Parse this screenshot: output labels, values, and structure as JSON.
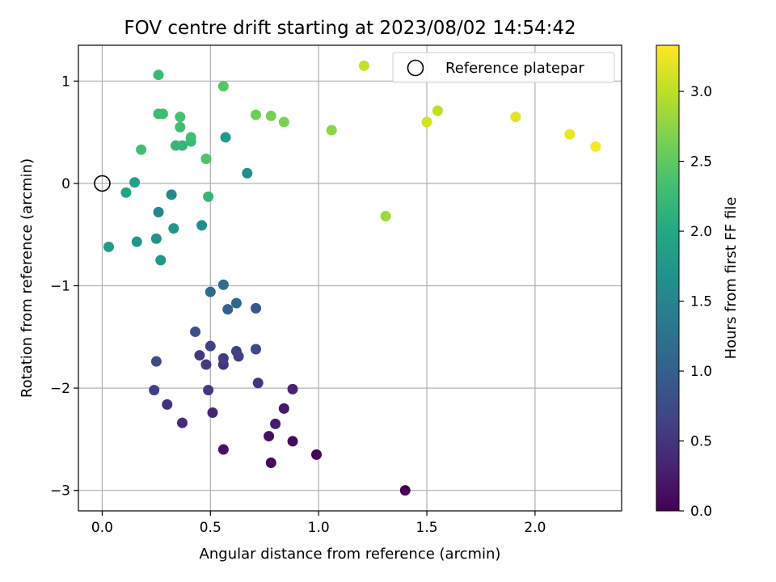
{
  "chart_data": {
    "type": "scatter",
    "title": "FOV centre drift starting at 2023/08/02 14:54:42",
    "xlabel": "Angular distance from reference (arcmin)",
    "ylabel": "Rotation from reference (arcmin)",
    "xlim": [
      -0.11,
      2.4
    ],
    "ylim": [
      -3.2,
      1.35
    ],
    "xticks": [
      0.0,
      0.5,
      1.0,
      1.5,
      2.0
    ],
    "xtick_labels": [
      "0.0",
      "0.5",
      "1.0",
      "1.5",
      "2.0"
    ],
    "yticks": [
      -3,
      -2,
      -1,
      0,
      1
    ],
    "ytick_labels": [
      "−3",
      "−2",
      "−1",
      "0",
      "1"
    ],
    "grid": true,
    "legend": {
      "position": "upper-right",
      "label": "Reference platepar",
      "marker": "open-circle"
    },
    "reference_point": {
      "x": 0.0,
      "y": 0.0
    },
    "colorbar": {
      "label": "Hours from first FF file",
      "colormap": "viridis",
      "range": [
        0.0,
        3.33
      ],
      "ticks": [
        0.0,
        0.5,
        1.0,
        1.5,
        2.0,
        2.5,
        3.0
      ],
      "tick_labels": [
        "0.0",
        "0.5",
        "1.0",
        "1.5",
        "2.0",
        "2.5",
        "3.0"
      ]
    },
    "points": [
      {
        "x": 1.4,
        "y": -3.0,
        "c": 0.0
      },
      {
        "x": 0.99,
        "y": -2.65,
        "c": 0.05
      },
      {
        "x": 0.78,
        "y": -2.73,
        "c": 0.08
      },
      {
        "x": 0.88,
        "y": -2.52,
        "c": 0.1
      },
      {
        "x": 0.77,
        "y": -2.47,
        "c": 0.13
      },
      {
        "x": 0.56,
        "y": -2.6,
        "c": 0.16
      },
      {
        "x": 0.84,
        "y": -2.2,
        "c": 0.2
      },
      {
        "x": 0.8,
        "y": -2.35,
        "c": 0.25
      },
      {
        "x": 0.88,
        "y": -2.01,
        "c": 0.3
      },
      {
        "x": 0.51,
        "y": -2.24,
        "c": 0.35
      },
      {
        "x": 0.37,
        "y": -2.34,
        "c": 0.42
      },
      {
        "x": 0.3,
        "y": -2.16,
        "c": 0.48
      },
      {
        "x": 0.49,
        "y": -2.02,
        "c": 0.55
      },
      {
        "x": 0.24,
        "y": -2.02,
        "c": 0.62
      },
      {
        "x": 0.72,
        "y": -1.95,
        "c": 0.5
      },
      {
        "x": 0.56,
        "y": -1.77,
        "c": 0.5
      },
      {
        "x": 0.48,
        "y": -1.77,
        "c": 0.55
      },
      {
        "x": 0.45,
        "y": -1.68,
        "c": 0.55
      },
      {
        "x": 0.56,
        "y": -1.71,
        "c": 0.6
      },
      {
        "x": 0.63,
        "y": -1.69,
        "c": 0.6
      },
      {
        "x": 0.62,
        "y": -1.64,
        "c": 0.65
      },
      {
        "x": 0.71,
        "y": -1.62,
        "c": 0.7
      },
      {
        "x": 0.5,
        "y": -1.59,
        "c": 0.65
      },
      {
        "x": 0.25,
        "y": -1.74,
        "c": 0.75
      },
      {
        "x": 0.43,
        "y": -1.45,
        "c": 0.8
      },
      {
        "x": 0.71,
        "y": -1.22,
        "c": 0.9
      },
      {
        "x": 0.58,
        "y": -1.23,
        "c": 1.0
      },
      {
        "x": 0.62,
        "y": -1.17,
        "c": 1.1
      },
      {
        "x": 0.5,
        "y": -1.06,
        "c": 1.15
      },
      {
        "x": 0.56,
        "y": -0.99,
        "c": 1.2
      },
      {
        "x": 0.27,
        "y": -0.75,
        "c": 1.8
      },
      {
        "x": 0.03,
        "y": -0.62,
        "c": 1.85
      },
      {
        "x": 0.16,
        "y": -0.57,
        "c": 1.75
      },
      {
        "x": 0.25,
        "y": -0.54,
        "c": 1.7
      },
      {
        "x": 0.33,
        "y": -0.44,
        "c": 1.75
      },
      {
        "x": 0.46,
        "y": -0.41,
        "c": 1.65
      },
      {
        "x": 0.26,
        "y": -0.28,
        "c": 1.5
      },
      {
        "x": 0.32,
        "y": -0.11,
        "c": 1.55
      },
      {
        "x": 0.11,
        "y": -0.09,
        "c": 1.95
      },
      {
        "x": 0.15,
        "y": 0.01,
        "c": 1.9
      },
      {
        "x": 0.49,
        "y": -0.13,
        "c": 2.2
      },
      {
        "x": 0.67,
        "y": 0.1,
        "c": 1.65
      },
      {
        "x": 0.57,
        "y": 0.45,
        "c": 1.8
      },
      {
        "x": 0.48,
        "y": 0.24,
        "c": 2.4
      },
      {
        "x": 0.18,
        "y": 0.33,
        "c": 2.3
      },
      {
        "x": 0.34,
        "y": 0.37,
        "c": 2.2
      },
      {
        "x": 0.37,
        "y": 0.37,
        "c": 2.2
      },
      {
        "x": 0.41,
        "y": 0.41,
        "c": 2.25
      },
      {
        "x": 0.41,
        "y": 0.45,
        "c": 2.3
      },
      {
        "x": 0.36,
        "y": 0.55,
        "c": 2.3
      },
      {
        "x": 0.36,
        "y": 0.65,
        "c": 2.35
      },
      {
        "x": 0.26,
        "y": 0.68,
        "c": 2.25
      },
      {
        "x": 0.28,
        "y": 0.68,
        "c": 2.3
      },
      {
        "x": 0.26,
        "y": 1.06,
        "c": 2.25
      },
      {
        "x": 0.56,
        "y": 0.95,
        "c": 2.45
      },
      {
        "x": 0.71,
        "y": 0.67,
        "c": 2.6
      },
      {
        "x": 0.78,
        "y": 0.66,
        "c": 2.65
      },
      {
        "x": 0.84,
        "y": 0.6,
        "c": 2.65
      },
      {
        "x": 1.06,
        "y": 0.52,
        "c": 2.75
      },
      {
        "x": 1.31,
        "y": -0.32,
        "c": 2.85
      },
      {
        "x": 1.21,
        "y": 1.15,
        "c": 3.05
      },
      {
        "x": 1.5,
        "y": 0.6,
        "c": 3.1
      },
      {
        "x": 1.55,
        "y": 0.71,
        "c": 3.0
      },
      {
        "x": 1.91,
        "y": 0.65,
        "c": 3.2
      },
      {
        "x": 2.16,
        "y": 0.48,
        "c": 3.25
      },
      {
        "x": 2.28,
        "y": 0.36,
        "c": 3.3
      }
    ]
  }
}
